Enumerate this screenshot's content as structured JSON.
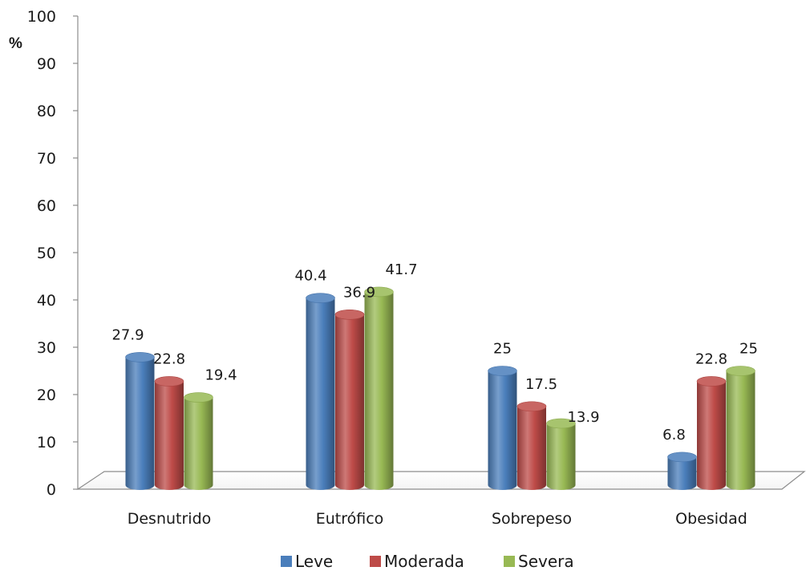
{
  "chart_data": {
    "type": "bar",
    "unit_label": "%",
    "categories": [
      "Desnutrido",
      "Eutrófico",
      "Sobrepeso",
      "Obesidad"
    ],
    "series": [
      {
        "name": "Leve",
        "color": "#4a7ebb",
        "values": [
          27.9,
          40.4,
          25,
          6.8
        ],
        "labels": [
          "27.9",
          "40.4",
          "25",
          "6.8"
        ]
      },
      {
        "name": "Moderada",
        "color": "#be4b48",
        "values": [
          22.8,
          36.9,
          17.5,
          22.8
        ],
        "labels": [
          "22.8",
          "36.9",
          "17.5",
          "22.8"
        ]
      },
      {
        "name": "Severa",
        "color": "#98b954",
        "values": [
          19.4,
          41.7,
          13.9,
          25
        ],
        "labels": [
          "19.4",
          "41.7",
          "13.9",
          "25"
        ]
      }
    ],
    "ylim": [
      0,
      100
    ],
    "yticks": [
      "0",
      "10",
      "20",
      "30",
      "40",
      "50",
      "60",
      "70",
      "80",
      "90",
      "100"
    ],
    "grid": false,
    "legend_position": "bottom"
  }
}
